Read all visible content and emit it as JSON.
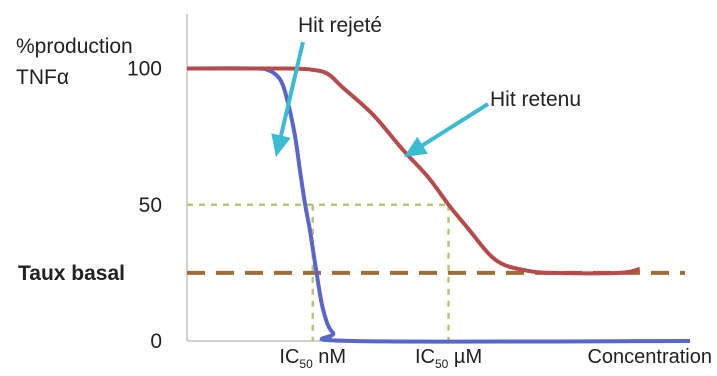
{
  "chart_data": {
    "type": "line",
    "title": "",
    "ylabel_lines": [
      "%production",
      "TNFα"
    ],
    "xlabel": "Concentration",
    "ylim": [
      0,
      120
    ],
    "y_ticks": [
      {
        "value": 100,
        "label": "100"
      },
      {
        "value": 50,
        "label": "50"
      },
      {
        "value": 0,
        "label": "0"
      }
    ],
    "basal": {
      "label": "Taux basal",
      "value": 25
    },
    "x_markers": [
      {
        "id": "ic50_nm",
        "main": "IC",
        "sub": "50",
        "unit": " nM",
        "x": 0.25
      },
      {
        "id": "ic50_um",
        "main": "IC",
        "sub": "50",
        "unit": " µM",
        "x": 0.52
      }
    ],
    "series": [
      {
        "name": "",
        "color": "#5867c8",
        "points": [
          [
            0,
            100
          ],
          [
            0.12,
            100
          ],
          [
            0.16,
            99.5
          ],
          [
            0.185,
            96
          ],
          [
            0.2,
            88
          ],
          [
            0.215,
            75
          ],
          [
            0.225,
            62
          ],
          [
            0.235,
            50
          ],
          [
            0.245,
            40
          ],
          [
            0.255,
            28
          ],
          [
            0.27,
            12
          ],
          [
            0.29,
            3
          ],
          [
            0.33,
            0
          ],
          [
            1.0,
            0
          ]
        ]
      },
      {
        "name": "",
        "color": "#b74a4a",
        "points": [
          [
            0,
            100
          ],
          [
            0.2,
            100
          ],
          [
            0.25,
            99.5
          ],
          [
            0.28,
            98
          ],
          [
            0.31,
            93
          ],
          [
            0.37,
            83
          ],
          [
            0.43,
            70
          ],
          [
            0.48,
            60
          ],
          [
            0.52,
            50
          ],
          [
            0.56,
            41
          ],
          [
            0.6,
            32
          ],
          [
            0.63,
            28
          ],
          [
            0.67,
            26
          ],
          [
            0.72,
            25
          ],
          [
            0.86,
            25
          ],
          [
            0.9,
            26.5
          ]
        ]
      }
    ],
    "annotations": [
      {
        "id": "hit-rejete",
        "text": "Hit rejeté",
        "arrow_color": "#3bbcd0"
      },
      {
        "id": "hit-retenu",
        "text": "Hit retenu",
        "arrow_color": "#3bbcd0"
      }
    ],
    "grid": false,
    "legend": "none",
    "colors": {
      "axis": "#b5b5b5",
      "basal_line": "#9e6d35",
      "guide": "#b5c77a",
      "arrow": "#3bbcd0"
    }
  }
}
